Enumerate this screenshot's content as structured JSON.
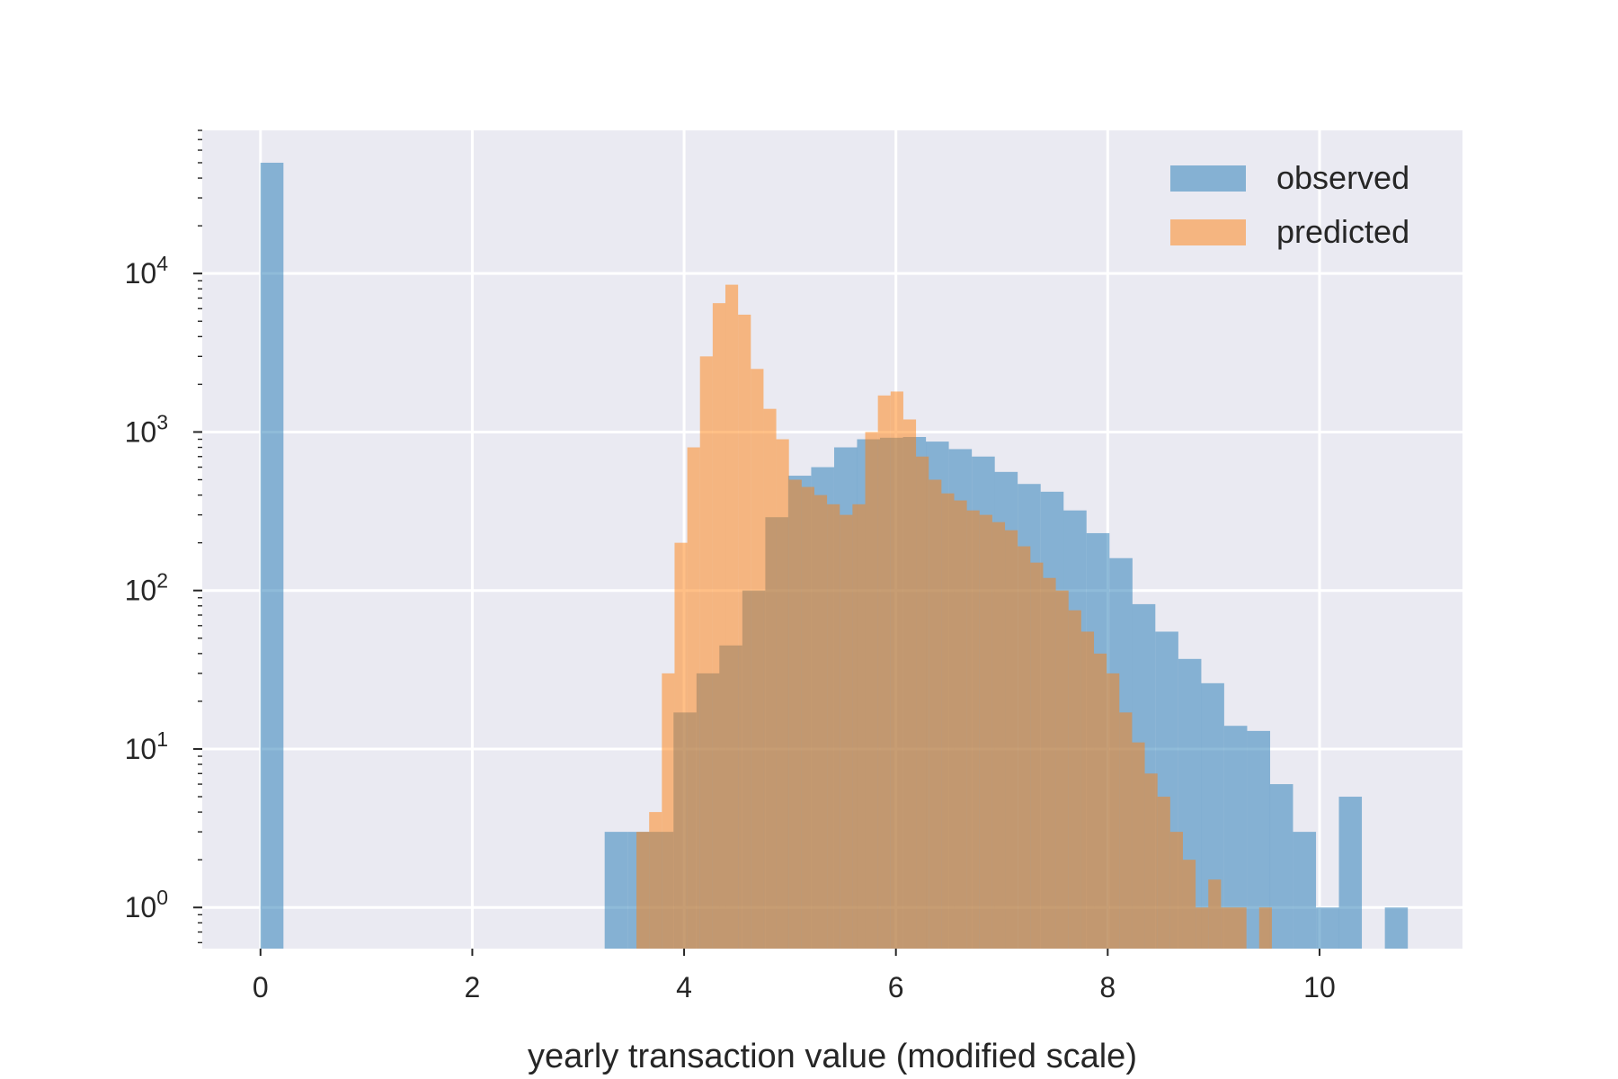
{
  "chart_data": {
    "type": "bar",
    "title": "",
    "xlabel": "yearly transaction value (modified scale)",
    "ylabel": "",
    "yscale": "log",
    "xlim": [
      -0.55,
      11.35
    ],
    "ylim": [
      0.55,
      80000
    ],
    "grid": true,
    "legend_position": "top-right",
    "x_ticks": [
      0,
      2,
      4,
      6,
      8,
      10
    ],
    "x_tick_labels": [
      "0",
      "2",
      "4",
      "6",
      "8",
      "10"
    ],
    "y_ticks": [
      1,
      10,
      100,
      1000,
      10000
    ],
    "y_tick_labels": [
      {
        "base": "10",
        "exp": "0"
      },
      {
        "base": "10",
        "exp": "1"
      },
      {
        "base": "10",
        "exp": "2"
      },
      {
        "base": "10",
        "exp": "3"
      },
      {
        "base": "10",
        "exp": "4"
      }
    ],
    "series": [
      {
        "name": "observed",
        "color": "#1f77b4",
        "opacity": 0.5,
        "bin_width": 0.2167,
        "bins": [
          [
            0.0,
            50000
          ],
          [
            3.25,
            3
          ],
          [
            3.467,
            3
          ],
          [
            3.683,
            3
          ],
          [
            3.9,
            17
          ],
          [
            4.117,
            30
          ],
          [
            4.333,
            45
          ],
          [
            4.55,
            100
          ],
          [
            4.767,
            290
          ],
          [
            4.983,
            530
          ],
          [
            5.2,
            600
          ],
          [
            5.417,
            800
          ],
          [
            5.633,
            900
          ],
          [
            5.85,
            920
          ],
          [
            6.067,
            930
          ],
          [
            6.283,
            870
          ],
          [
            6.5,
            780
          ],
          [
            6.717,
            700
          ],
          [
            6.933,
            560
          ],
          [
            7.15,
            470
          ],
          [
            7.367,
            420
          ],
          [
            7.583,
            320
          ],
          [
            7.8,
            230
          ],
          [
            8.017,
            160
          ],
          [
            8.233,
            82
          ],
          [
            8.45,
            55
          ],
          [
            8.667,
            37
          ],
          [
            8.883,
            26
          ],
          [
            9.1,
            14
          ],
          [
            9.317,
            13
          ],
          [
            9.533,
            6
          ],
          [
            9.75,
            3
          ],
          [
            9.967,
            1
          ],
          [
            10.183,
            5
          ],
          [
            10.617,
            1
          ]
        ]
      },
      {
        "name": "predicted",
        "color": "#ff7f0e",
        "opacity": 0.5,
        "bin_width": 0.12,
        "bins": [
          [
            3.55,
            3
          ],
          [
            3.67,
            4
          ],
          [
            3.79,
            30
          ],
          [
            3.91,
            200
          ],
          [
            4.03,
            800
          ],
          [
            4.15,
            3000
          ],
          [
            4.27,
            6500
          ],
          [
            4.39,
            8500
          ],
          [
            4.51,
            5500
          ],
          [
            4.63,
            2500
          ],
          [
            4.75,
            1400
          ],
          [
            4.87,
            900
          ],
          [
            4.99,
            500
          ],
          [
            5.11,
            450
          ],
          [
            5.23,
            400
          ],
          [
            5.35,
            350
          ],
          [
            5.47,
            300
          ],
          [
            5.59,
            350
          ],
          [
            5.71,
            1000
          ],
          [
            5.83,
            1700
          ],
          [
            5.95,
            1800
          ],
          [
            6.07,
            1200
          ],
          [
            6.19,
            700
          ],
          [
            6.31,
            500
          ],
          [
            6.43,
            410
          ],
          [
            6.55,
            370
          ],
          [
            6.67,
            320
          ],
          [
            6.79,
            300
          ],
          [
            6.91,
            270
          ],
          [
            7.03,
            240
          ],
          [
            7.15,
            190
          ],
          [
            7.27,
            150
          ],
          [
            7.39,
            120
          ],
          [
            7.51,
            100
          ],
          [
            7.63,
            75
          ],
          [
            7.75,
            55
          ],
          [
            7.87,
            40
          ],
          [
            7.99,
            30
          ],
          [
            8.11,
            17
          ],
          [
            8.23,
            11
          ],
          [
            8.35,
            7
          ],
          [
            8.47,
            5
          ],
          [
            8.59,
            3
          ],
          [
            8.71,
            2
          ],
          [
            8.83,
            1
          ],
          [
            8.95,
            1.5
          ],
          [
            9.07,
            1
          ],
          [
            9.19,
            1
          ],
          [
            9.43,
            1
          ]
        ]
      }
    ]
  }
}
